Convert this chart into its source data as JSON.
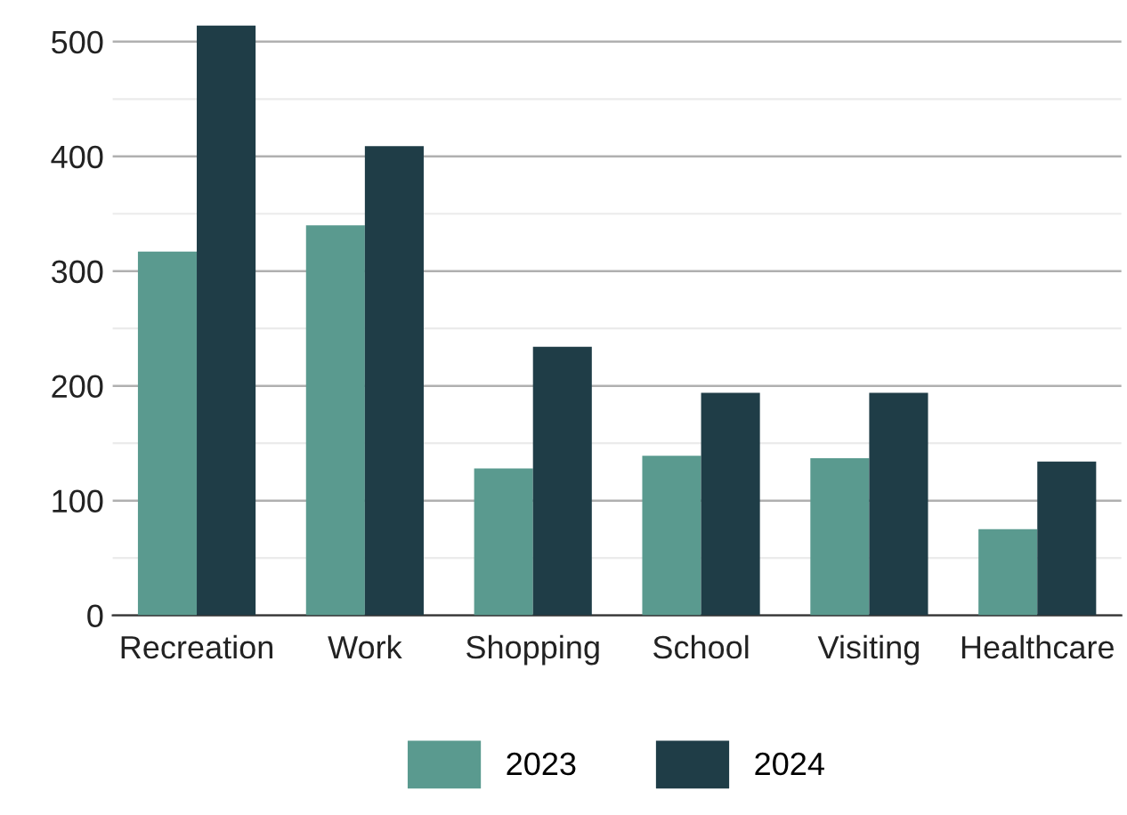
{
  "chart_data": {
    "type": "bar",
    "categories": [
      "Recreation",
      "Work",
      "Shopping",
      "School",
      "Visiting",
      "Healthcare"
    ],
    "series": [
      {
        "name": "2023",
        "color": "#5a9a8f",
        "values": [
          317,
          340,
          128,
          139,
          137,
          75
        ]
      },
      {
        "name": "2024",
        "color": "#1f3d47",
        "values": [
          514,
          409,
          234,
          194,
          194,
          134
        ]
      }
    ],
    "ylim": [
      0,
      515
    ],
    "yticks": [
      0,
      100,
      200,
      300,
      400,
      500
    ],
    "grid": "y",
    "legend": "bottom"
  }
}
